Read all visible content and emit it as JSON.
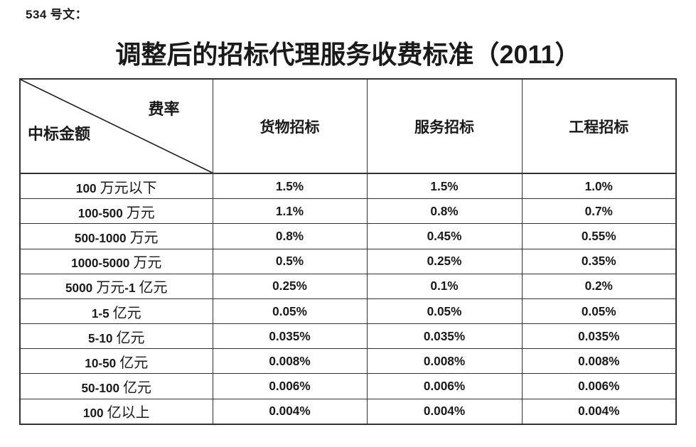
{
  "page": {
    "doc_label": "534 号文：",
    "title": "调整后的招标代理服务收费标准（2011）"
  },
  "table": {
    "corner": {
      "top_right": "费率",
      "bottom_left": "中标金额"
    },
    "columns": [
      "货物招标",
      "服务招标",
      "工程招标"
    ],
    "rows": [
      {
        "label": "100 万元以下",
        "values": [
          "1.5%",
          "1.5%",
          "1.0%"
        ]
      },
      {
        "label": "100-500 万元",
        "values": [
          "1.1%",
          "0.8%",
          "0.7%"
        ]
      },
      {
        "label": "500-1000 万元",
        "values": [
          "0.8%",
          "0.45%",
          "0.55%"
        ]
      },
      {
        "label": "1000-5000 万元",
        "values": [
          "0.5%",
          "0.25%",
          "0.35%"
        ]
      },
      {
        "label": "5000 万元-1 亿元",
        "values": [
          "0.25%",
          "0.1%",
          "0.2%"
        ]
      },
      {
        "label": "1-5 亿元",
        "values": [
          "0.05%",
          "0.05%",
          "0.05%"
        ]
      },
      {
        "label": "5-10 亿元",
        "values": [
          "0.035%",
          "0.035%",
          "0.035%"
        ]
      },
      {
        "label": "10-50 亿元",
        "values": [
          "0.008%",
          "0.008%",
          "0.008%"
        ]
      },
      {
        "label": "50-100 亿元",
        "values": [
          "0.006%",
          "0.006%",
          "0.006%"
        ]
      },
      {
        "label": "100 亿以上",
        "values": [
          "0.004%",
          "0.004%",
          "0.004%"
        ]
      }
    ]
  },
  "colors": {
    "background": "#ffffff",
    "text": "#1a1a1a",
    "border": "#333333"
  }
}
